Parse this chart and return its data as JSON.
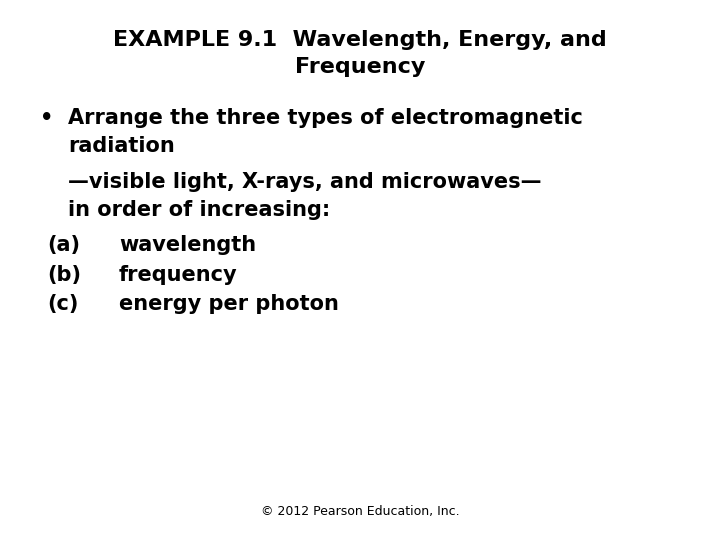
{
  "title_line1": "EXAMPLE 9.1  Wavelength, Energy, and",
  "title_line2": "Frequency",
  "bullet_line1": "Arrange the three types of electromagnetic",
  "bullet_line2": "radiation",
  "indent_line1": "—visible light, X-rays, and microwaves—",
  "indent_line2": "in order of increasing:",
  "item_a_label": "(a)",
  "item_a_text": "wavelength",
  "item_b_label": "(b)",
  "item_b_text": "frequency",
  "item_c_label": "(c)",
  "item_c_text": "energy per photon",
  "footer": "© 2012 Pearson Education, Inc.",
  "background_color": "#ffffff",
  "text_color": "#000000",
  "title_fontsize": 16,
  "body_fontsize": 15,
  "footer_fontsize": 9,
  "bullet_char": "•"
}
